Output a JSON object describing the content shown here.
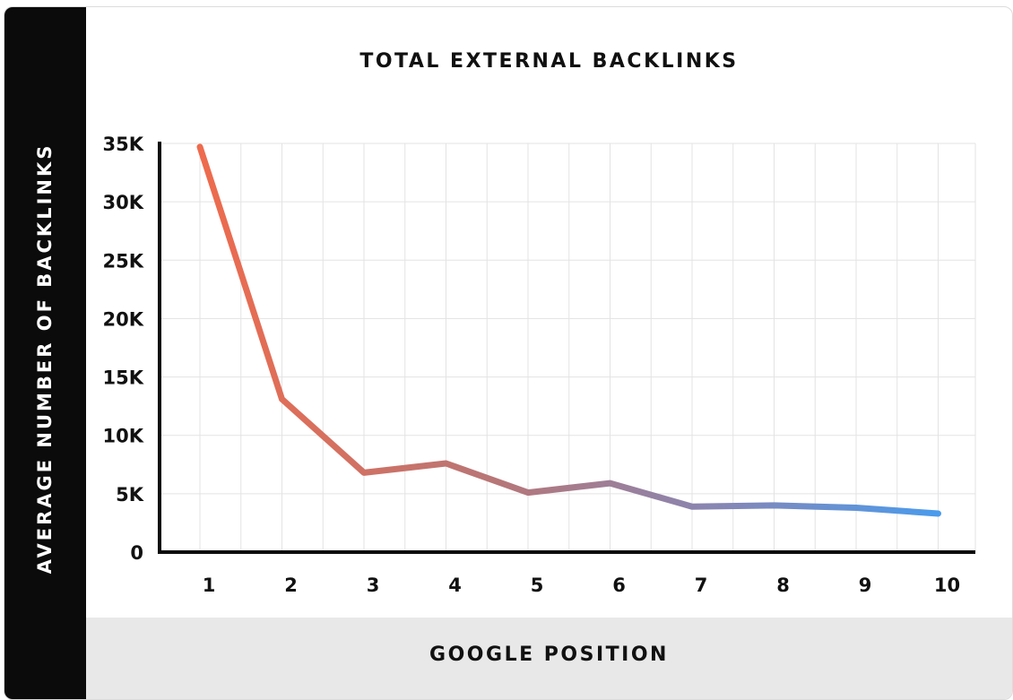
{
  "chart_data": {
    "type": "line",
    "title": "TOTAL EXTERNAL BACKLINKS",
    "xlabel": "GOOGLE POSITION",
    "ylabel": "AVERAGE NUMBER OF BACKLINKS",
    "x": [
      1,
      2,
      3,
      4,
      5,
      6,
      7,
      8,
      9,
      10
    ],
    "series": [
      {
        "values": [
          34700,
          13100,
          6800,
          7600,
          5100,
          5900,
          3900,
          4000,
          3800,
          3300
        ]
      }
    ],
    "ylim": [
      0,
      35000
    ],
    "yticks": [
      0,
      5000,
      10000,
      15000,
      20000,
      25000,
      30000,
      35000
    ],
    "ytick_labels": [
      "0",
      "5K",
      "10K",
      "15K",
      "20K",
      "25K",
      "30K",
      "35K"
    ],
    "xtick_labels": [
      "1",
      "2",
      "3",
      "4",
      "5",
      "6",
      "7",
      "8",
      "9",
      "10"
    ],
    "grid": true,
    "line_gradient": [
      "#ee6b4d",
      "#4a9bec"
    ]
  }
}
